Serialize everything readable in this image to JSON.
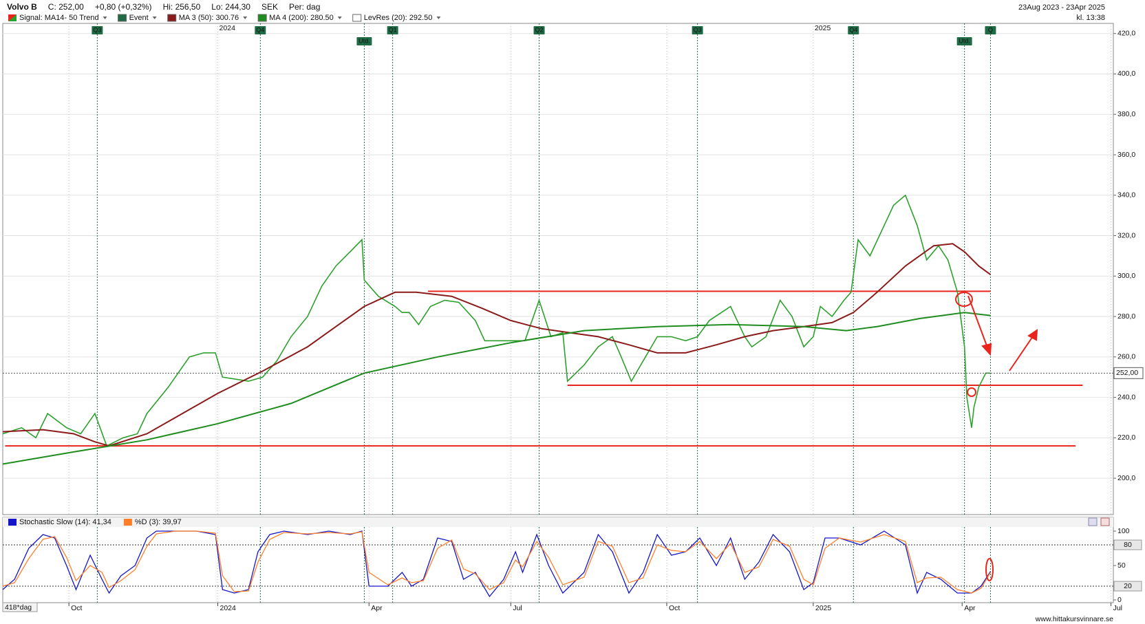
{
  "chart_data": [
    {
      "type": "stock",
      "header": {
        "symbol": "Volvo B",
        "close": "C: 252,00",
        "change": "+0,80 (+0,32%)",
        "high": "Hi: 256,50",
        "low": "Lo: 244,30",
        "currency": "SEK",
        "period": "Per: dag",
        "range": "23Aug 2023 - 23Apr 2025",
        "time": "kl. 13:38"
      },
      "xlim": [
        0,
        470
      ],
      "xticks": [
        {
          "value": 28,
          "label": "Oct"
        },
        {
          "value": 91,
          "label": "2024"
        },
        {
          "value": 155,
          "label": "Apr"
        },
        {
          "value": 215,
          "label": "Jul"
        },
        {
          "value": 281,
          "label": "Oct"
        },
        {
          "value": 343,
          "label": "2025"
        },
        {
          "value": 406,
          "label": "Apr"
        },
        {
          "value": 469,
          "label": "Jul"
        }
      ],
      "ylim": [
        182,
        425
      ],
      "yticks": [
        {
          "value": 200,
          "label": "200,0"
        },
        {
          "value": 220,
          "label": "220,0"
        },
        {
          "value": 240,
          "label": "240,0"
        },
        {
          "value": 260,
          "label": "260,0"
        },
        {
          "value": 280,
          "label": "280,0"
        },
        {
          "value": 300,
          "label": "300,0"
        },
        {
          "value": 320,
          "label": "320,0"
        },
        {
          "value": 340,
          "label": "340,0"
        },
        {
          "value": 360,
          "label": "360,0"
        },
        {
          "value": 380,
          "label": "380,0"
        },
        {
          "value": 400,
          "label": "400,0"
        },
        {
          "value": 420,
          "label": "420,0"
        }
      ],
      "grid": true,
      "last": {
        "value": 252,
        "label": "252,00"
      },
      "series": [
        {
          "name": "Signal: MA14- 50 Trend",
          "color": "#2ca02c",
          "x": [
            0,
            8,
            14,
            19,
            27,
            33,
            39,
            44,
            51,
            57,
            61,
            70,
            79,
            85,
            90,
            93,
            104,
            110,
            116,
            122,
            129,
            135,
            141,
            147,
            152,
            153,
            159,
            166,
            169,
            172,
            176,
            181,
            187,
            193,
            200,
            204,
            212,
            221,
            227,
            232,
            237,
            239,
            246,
            252,
            258,
            261,
            266,
            271,
            277,
            283,
            289,
            294,
            299,
            308,
            314,
            317,
            323,
            329,
            334,
            339,
            343,
            346,
            351,
            356,
            359,
            362,
            367,
            373,
            377,
            382,
            387,
            391,
            396,
            400,
            404,
            407,
            408,
            410,
            411,
            413,
            416,
            418
          ],
          "values": [
            222,
            225,
            220,
            232,
            225,
            222,
            232,
            216,
            220,
            222,
            232,
            245,
            260,
            262,
            262,
            250,
            248,
            250,
            258,
            270,
            280,
            295,
            305,
            312,
            318,
            298,
            290,
            285,
            282,
            282,
            276,
            285,
            288,
            287,
            278,
            268,
            268,
            268,
            288,
            270,
            272,
            248,
            256,
            265,
            270,
            262,
            248,
            258,
            270,
            270,
            268,
            270,
            278,
            285,
            270,
            265,
            270,
            288,
            280,
            265,
            270,
            285,
            280,
            288,
            292,
            318,
            310,
            325,
            335,
            340,
            325,
            308,
            315,
            308,
            292,
            265,
            240,
            225,
            235,
            245,
            252,
            252
          ]
        },
        {
          "name": "MA 3 (50): 300.76",
          "color": "#8b1a1a",
          "x": [
            0,
            17,
            30,
            39,
            45,
            61,
            73,
            91,
            110,
            129,
            141,
            153,
            166,
            175,
            190,
            203,
            215,
            228,
            240,
            252,
            265,
            277,
            289,
            302,
            314,
            326,
            339,
            351,
            360,
            370,
            382,
            394,
            402,
            407,
            413,
            418
          ],
          "values": [
            223,
            224,
            222,
            218,
            216,
            222,
            230,
            242,
            253,
            265,
            275,
            285,
            292,
            292,
            290,
            284,
            278,
            274,
            272,
            270,
            266,
            262,
            262,
            266,
            270,
            273,
            275,
            277,
            282,
            292,
            305,
            315,
            316,
            312,
            305,
            300.76
          ]
        },
        {
          "name": "MA 4 (200): 280.50",
          "color": "#1e8c1e",
          "x": [
            0,
            30,
            61,
            91,
            122,
            153,
            184,
            215,
            246,
            277,
            308,
            339,
            357,
            370,
            388,
            407,
            418
          ],
          "values": [
            207,
            213,
            219,
            227,
            237,
            252,
            260,
            267,
            273,
            275,
            276,
            275,
            273,
            275,
            279,
            282,
            280.5
          ]
        }
      ],
      "events": {
        "name": "Event",
        "color": "#1e6b45",
        "items": [
          {
            "label": "Q3",
            "x": 40
          },
          {
            "label": "Q4",
            "x": 109
          },
          {
            "label": "Utd.",
            "x": 153
          },
          {
            "label": "Q1",
            "x": 165
          },
          {
            "label": "Q2",
            "x": 227
          },
          {
            "label": "Q3",
            "x": 294
          },
          {
            "label": "Q4",
            "x": 360
          },
          {
            "label": "Utd.",
            "x": 407
          },
          {
            "label": "Q",
            "x": 418
          }
        ]
      },
      "year_labels": [
        {
          "label": "2024",
          "x": 95
        },
        {
          "label": "2025",
          "x": 347
        }
      ],
      "levels": {
        "name": "LevRes (20): 292.50",
        "color": "#e8241c",
        "items": [
          {
            "value": 292.5,
            "x": [
              180,
              418
            ]
          },
          {
            "value": 246,
            "x": [
              239,
              457
            ]
          },
          {
            "value": 216,
            "x": [
              1,
              454
            ]
          }
        ]
      }
    },
    {
      "type": "line",
      "xlim": [
        0,
        470
      ],
      "ylim": [
        0,
        100
      ],
      "yticks": [
        0,
        50,
        100
      ],
      "levels": [
        20,
        80
      ],
      "period_label": "418*dag",
      "source": "www.hittakursvinnare.se",
      "x": [
        0,
        5,
        11,
        17,
        22,
        27,
        31,
        37,
        42,
        45,
        50,
        56,
        61,
        65,
        73,
        82,
        90,
        93,
        98,
        104,
        108,
        113,
        119,
        129,
        138,
        147,
        152,
        155,
        163,
        169,
        173,
        178,
        184,
        190,
        195,
        200,
        206,
        212,
        217,
        220,
        226,
        231,
        237,
        246,
        252,
        258,
        265,
        271,
        277,
        283,
        289,
        295,
        302,
        308,
        314,
        320,
        326,
        333,
        339,
        343,
        348,
        354,
        363,
        373,
        382,
        387,
        391,
        397,
        404,
        410,
        414,
        418
      ],
      "series": [
        {
          "name": "Stochastic Slow (14): 41,34",
          "color": "#1414c8",
          "values": [
            15,
            30,
            75,
            95,
            90,
            50,
            15,
            65,
            30,
            10,
            35,
            50,
            90,
            100,
            100,
            100,
            95,
            15,
            10,
            15,
            70,
            95,
            100,
            95,
            100,
            95,
            100,
            20,
            20,
            40,
            20,
            30,
            90,
            85,
            30,
            40,
            5,
            30,
            70,
            40,
            95,
            50,
            10,
            40,
            95,
            70,
            10,
            40,
            95,
            65,
            70,
            90,
            50,
            90,
            30,
            55,
            95,
            70,
            15,
            25,
            90,
            90,
            80,
            100,
            80,
            10,
            40,
            30,
            10,
            10,
            20,
            41.34
          ]
        },
        {
          "name": "%D (3): 39,97",
          "color": "#ff7f27",
          "values": [
            20,
            25,
            60,
            88,
            92,
            62,
            28,
            50,
            40,
            18,
            28,
            44,
            78,
            96,
            100,
            100,
            97,
            35,
            12,
            13,
            55,
            88,
            98,
            96,
            98,
            96,
            99,
            40,
            22,
            32,
            25,
            28,
            75,
            87,
            45,
            38,
            15,
            25,
            58,
            48,
            85,
            62,
            22,
            33,
            85,
            78,
            25,
            32,
            80,
            72,
            70,
            85,
            60,
            82,
            40,
            48,
            88,
            78,
            30,
            22,
            75,
            90,
            84,
            95,
            85,
            25,
            32,
            33,
            15,
            10,
            17,
            39.97
          ]
        }
      ]
    }
  ]
}
